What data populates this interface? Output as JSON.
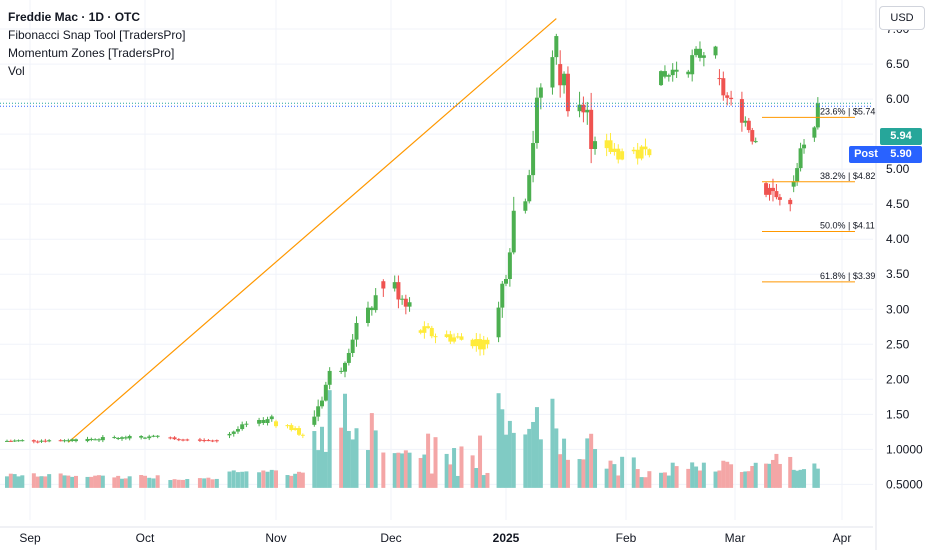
{
  "header": {
    "title": "Freddie Mac · 1D · OTC",
    "indicators": [
      "Fibonacci Snap Tool [TradersPro]",
      "Momentum Zones [TradersPro]",
      "Vol"
    ]
  },
  "currency_button": "USD",
  "price_tags": {
    "last": "5.94",
    "post_label": "Post",
    "post": "5.90"
  },
  "colors": {
    "up": "#4caf50",
    "down": "#ef5350",
    "neutral": "#ffeb3b",
    "vol_up": "#80cbc4",
    "vol_down": "#f4a6a6",
    "fib": "#ff9800",
    "trend": "#ff9800",
    "grid": "#f0f3fa",
    "last_price": "#26a69a",
    "post": "#2962ff"
  },
  "chart_data": {
    "type": "candlestick",
    "price_axis": {
      "ticks": [
        0.5,
        1.0,
        1.5,
        2.0,
        2.5,
        3.0,
        3.5,
        4.0,
        4.5,
        5.0,
        5.5,
        6.0,
        6.5,
        7.0
      ],
      "tick_labels": [
        "0.5000",
        "1.0000",
        "1.50",
        "2.00",
        "2.50",
        "3.00",
        "3.50",
        "4.00",
        "4.50",
        "5.00",
        "5.50",
        "6.00",
        "6.50",
        "7.00"
      ]
    },
    "time_axis": {
      "labels": [
        "Sep",
        "Oct",
        "Nov",
        "Dec",
        "2025",
        "Feb",
        "Mar",
        "Apr"
      ],
      "label_dates": [
        "2024-09-01",
        "2024-10-01",
        "2024-11-01",
        "2024-12-01",
        "2025-01-01",
        "2025-02-01",
        "2025-03-01",
        "2025-04-01"
      ]
    },
    "last_price": 5.94,
    "post_price": 5.9,
    "fib_levels": [
      {
        "label": "23.6% | $5.74",
        "price": 5.74
      },
      {
        "label": "38.2% | $4.82",
        "price": 4.82
      },
      {
        "label": "50.0% | $4.11",
        "price": 4.11
      },
      {
        "label": "61.8% | $3.39",
        "price": 3.39
      }
    ],
    "trend_line": {
      "start": {
        "date": "2024-09-11",
        "price": 1.1
      },
      "end": {
        "date": "2025-01-14",
        "price": 7.15
      }
    },
    "segments": [
      {
        "from": "2024-08-26",
        "to": "2024-09-10",
        "o": 1.12,
        "c": 1.13,
        "zone": "mixed",
        "vmin": 0.6,
        "vmax": 0.66,
        "noise": 0.02
      },
      {
        "from": "2024-09-11",
        "to": "2024-10-04",
        "o": 1.13,
        "c": 1.18,
        "zone": "up",
        "vmin": 0.58,
        "vmax": 0.64,
        "noise": 0.025
      },
      {
        "from": "2024-10-07",
        "to": "2024-10-18",
        "o": 1.16,
        "c": 1.13,
        "zone": "down",
        "vmin": 0.56,
        "vmax": 0.6,
        "noise": 0.02
      },
      {
        "from": "2024-10-21",
        "to": "2024-10-31",
        "o": 1.2,
        "c": 1.47,
        "zone": "up",
        "vmin": 0.62,
        "vmax": 0.74,
        "noise": 0.04
      },
      {
        "from": "2024-11-01",
        "to": "2024-11-08",
        "o": 1.4,
        "c": 1.2,
        "zone": "neutral",
        "vmin": 0.62,
        "vmax": 0.7,
        "noise": 0.04
      },
      {
        "from": "2024-11-11",
        "to": "2024-11-27",
        "o": 1.35,
        "c": 3.2,
        "zone": "up",
        "vmin": 0.9,
        "vmax": 1.95,
        "noise": 0.12
      },
      {
        "from": "2024-11-29",
        "to": "2024-12-06",
        "o": 3.4,
        "c": 3.1,
        "zone": "mixed",
        "vmin": 0.8,
        "vmax": 1.05,
        "noise": 0.15
      },
      {
        "from": "2024-12-09",
        "to": "2024-12-27",
        "o": 2.7,
        "c": 2.5,
        "zone": "neutral",
        "vmin": 0.62,
        "vmax": 1.3,
        "noise": 0.1
      },
      {
        "from": "2024-12-30",
        "to": "2025-01-14",
        "o": 2.6,
        "c": 6.9,
        "zone": "up",
        "vmin": 0.9,
        "vmax": 1.85,
        "noise": 0.25
      },
      {
        "from": "2025-01-15",
        "to": "2025-01-24",
        "o": 6.5,
        "c": 5.4,
        "zone": "mixed",
        "vmin": 0.85,
        "vmax": 1.25,
        "noise": 0.3
      },
      {
        "from": "2025-01-27",
        "to": "2025-02-07",
        "o": 5.3,
        "c": 5.2,
        "zone": "neutral",
        "vmin": 0.6,
        "vmax": 0.9,
        "noise": 0.15
      },
      {
        "from": "2025-02-10",
        "to": "2025-02-24",
        "o": 6.2,
        "c": 6.75,
        "zone": "up",
        "vmin": 0.62,
        "vmax": 0.82,
        "noise": 0.15
      },
      {
        "from": "2025-02-25",
        "to": "2025-03-07",
        "o": 6.3,
        "c": 5.4,
        "zone": "mixed",
        "vmin": 0.65,
        "vmax": 0.88,
        "noise": 0.15
      },
      {
        "from": "2025-03-10",
        "to": "2025-03-17",
        "o": 4.8,
        "c": 4.5,
        "zone": "down",
        "vmin": 0.78,
        "vmax": 0.95,
        "noise": 0.18
      },
      {
        "from": "2025-03-18",
        "to": "2025-03-21",
        "o": 4.75,
        "c": 5.35,
        "zone": "mixed",
        "vmin": 0.62,
        "vmax": 0.72,
        "noise": 0.12
      },
      {
        "from": "2025-03-24",
        "to": "2025-03-25",
        "o": 5.45,
        "c": 5.94,
        "zone": "up",
        "vmin": 0.72,
        "vmax": 0.8,
        "noise": 0.1
      }
    ]
  }
}
